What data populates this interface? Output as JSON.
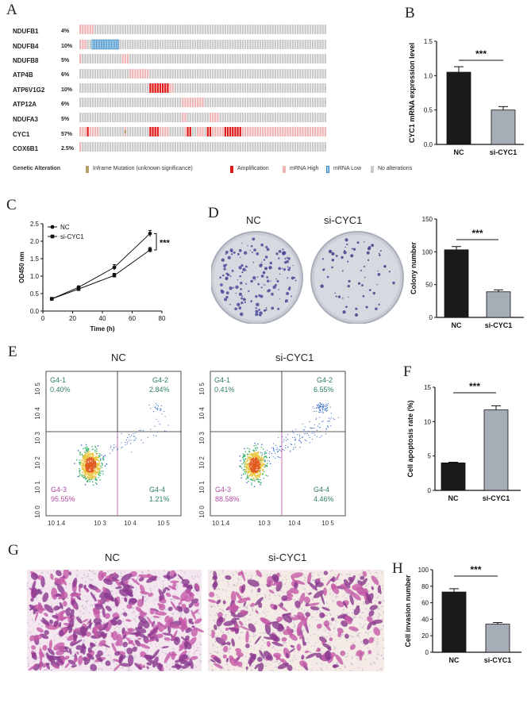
{
  "panels": {
    "a": "A",
    "b": "B",
    "c": "C",
    "d": "D",
    "e": "E",
    "f": "F",
    "g": "G",
    "h": "H"
  },
  "oncoprint": {
    "genes": [
      {
        "name": "NDUFB1",
        "pct": "4%"
      },
      {
        "name": "NDUFB4",
        "pct": "10%"
      },
      {
        "name": "NDUFB8",
        "pct": "5%"
      },
      {
        "name": "ATP4B",
        "pct": "6%"
      },
      {
        "name": "ATP6V1G2",
        "pct": "10%"
      },
      {
        "name": "ATP12A",
        "pct": "6%"
      },
      {
        "name": "NDUFA3",
        "pct": "5%"
      },
      {
        "name": "CYC1",
        "pct": "57%"
      },
      {
        "name": "COX6B1",
        "pct": "2.5%"
      }
    ],
    "legend_title": "Genetic Alteration",
    "legend": [
      {
        "label": "Inframe Mutation (unknown significance)",
        "color": "#b5a06b"
      },
      {
        "label": "Amplification",
        "color": "#e01b1b"
      },
      {
        "label": "mRNA High",
        "color": "#f0b6b6"
      },
      {
        "label": "mRNA Low",
        "color": "#9fcbe8"
      },
      {
        "label": "No alterations",
        "color": "#c9c9c9"
      }
    ]
  },
  "panel_b": {
    "chart_data": {
      "type": "bar",
      "categories": [
        "NC",
        "si-CYC1"
      ],
      "values": [
        1.05,
        0.5
      ],
      "errors": [
        0.08,
        0.05
      ],
      "ylabel": "CYC1 mRNA expression level",
      "ylim": [
        0,
        1.5
      ],
      "yticks": [
        "0.0",
        "0.5",
        "1.0",
        "1.5"
      ],
      "significance": "***",
      "colors": [
        "#1a1a1a",
        "#a7adb6"
      ]
    }
  },
  "panel_c": {
    "chart_data": {
      "type": "line",
      "x": [
        6,
        24,
        48,
        72
      ],
      "series": [
        {
          "name": "NC",
          "values": [
            0.35,
            0.68,
            1.25,
            2.22
          ],
          "errors": [
            0.02,
            0.04,
            0.08,
            0.09
          ]
        },
        {
          "name": "si-CYC1",
          "values": [
            0.35,
            0.63,
            1.02,
            1.75
          ],
          "errors": [
            0.02,
            0.03,
            0.06,
            0.07
          ]
        }
      ],
      "xlabel": "Time (h)",
      "ylabel": "OD450 nm",
      "xlim": [
        0,
        80
      ],
      "ylim": [
        0,
        2.5
      ],
      "xticks": [
        "0",
        "20",
        "40",
        "60",
        "80"
      ],
      "yticks": [
        "0.0",
        "0.5",
        "1.0",
        "1.5",
        "2.0",
        "2.5"
      ],
      "significance": "***"
    }
  },
  "panel_d": {
    "titles": [
      "NC",
      "si-CYC1"
    ],
    "chart_data": {
      "type": "bar",
      "categories": [
        "NC",
        "si-CYC1"
      ],
      "values": [
        103,
        39
      ],
      "errors": [
        5,
        3
      ],
      "ylabel": "Colony number",
      "ylim": [
        0,
        150
      ],
      "yticks": [
        "0",
        "50",
        "100",
        "150"
      ],
      "significance": "***",
      "colors": [
        "#1a1a1a",
        "#a7adb6"
      ]
    }
  },
  "panel_e": {
    "titles": [
      "NC",
      "si-CYC1"
    ],
    "quadrants": [
      {
        "q1": "G4-1",
        "q1v": "0.40%",
        "q2": "G4-2",
        "q2v": "2.84%",
        "q3": "G4-3",
        "q3v": "95.55%",
        "q4": "G4-4",
        "q4v": "1.21%"
      },
      {
        "q1": "G4-1",
        "q1v": "0.41%",
        "q2": "G4-2",
        "q2v": "6.55%",
        "q3": "G4-3",
        "q3v": "88.58%",
        "q4": "G4-4",
        "q4v": "4.46%"
      }
    ],
    "xticks": [
      "10 1.4",
      "10 3",
      "10 4",
      "10 5"
    ],
    "yticks": [
      "10 5",
      "10 4",
      "10 3",
      "10 2",
      "10 1",
      "10 0"
    ]
  },
  "panel_f": {
    "chart_data": {
      "type": "bar",
      "categories": [
        "NC",
        "si-CYC1"
      ],
      "values": [
        4.0,
        11.7
      ],
      "errors": [
        0.1,
        0.6
      ],
      "ylabel": "Cell apoptosis rate (%)",
      "ylim": [
        0,
        15
      ],
      "yticks": [
        "0",
        "5",
        "10",
        "15"
      ],
      "significance": "***",
      "colors": [
        "#1a1a1a",
        "#a7adb6"
      ]
    }
  },
  "panel_g": {
    "titles": [
      "NC",
      "si-CYC1"
    ]
  },
  "panel_h": {
    "chart_data": {
      "type": "bar",
      "categories": [
        "NC",
        "si-CYC1"
      ],
      "values": [
        73,
        34
      ],
      "errors": [
        4,
        2
      ],
      "ylabel": "Cell invasion number",
      "ylim": [
        0,
        100
      ],
      "yticks": [
        "0",
        "20",
        "40",
        "60",
        "80",
        "100"
      ],
      "significance": "***",
      "colors": [
        "#1a1a1a",
        "#a7adb6"
      ]
    }
  }
}
